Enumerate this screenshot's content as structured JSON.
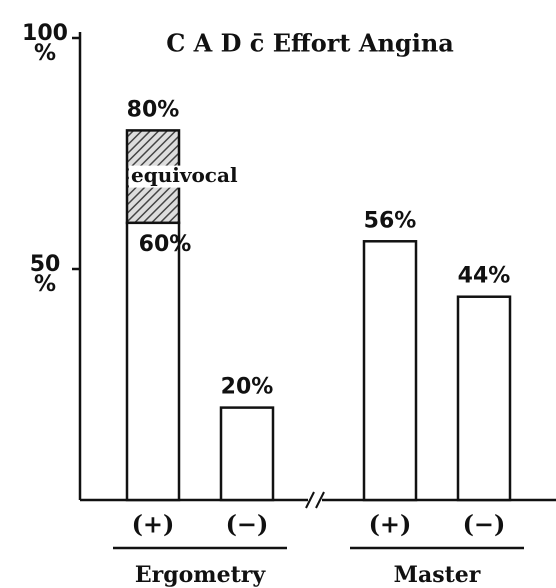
{
  "chart_data": {
    "type": "bar",
    "title": "C A D c̄ Effort Angina",
    "categories": [
      "(+)",
      "(−)",
      "(+)",
      "(−)"
    ],
    "groups": [
      "Ergometry",
      "Master"
    ],
    "series": [
      {
        "color": "#ffffff",
        "values": [
          60,
          20,
          56,
          44
        ],
        "value_labels": [
          "60%",
          "20%",
          "56%",
          "44%"
        ]
      },
      {
        "name": "equivocal",
        "color": "#888888",
        "pattern": "hatch",
        "values": [
          20,
          null,
          null,
          null
        ]
      }
    ],
    "annotations": [
      "80%"
    ],
    "ylim": [
      0,
      100
    ],
    "yticks": [
      {
        "value": 50,
        "label": "50\n%"
      },
      {
        "value": 100,
        "label": "100\n%"
      }
    ],
    "axis_break": true
  }
}
